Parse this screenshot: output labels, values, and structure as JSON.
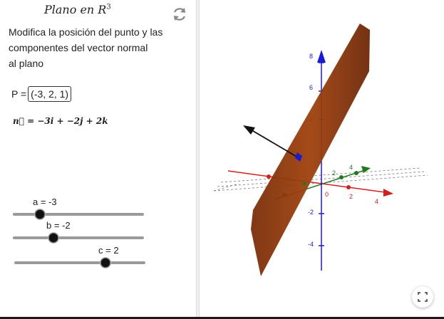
{
  "title": {
    "text": "Plano en R",
    "sup": "3"
  },
  "description": [
    "Modifica la posición del punto y las",
    "componentes del vector normal",
    "al plano"
  ],
  "point": {
    "label": "P =",
    "value": "(-3, 2, 1)"
  },
  "normal_vector": {
    "text": "n⃗ = −3i + −2j + 2k"
  },
  "sliders": [
    {
      "name": "a",
      "label": "a = -3",
      "value": -3
    },
    {
      "name": "b",
      "label": "b = -2",
      "value": -2
    },
    {
      "name": "c",
      "label": "c = 2",
      "value": 2
    }
  ],
  "view3d": {
    "z_ticks": [
      "8",
      "6",
      "4",
      "-2",
      "-4"
    ],
    "x_ticks": [
      "2",
      "4"
    ],
    "y_ticks": [
      "2",
      "4"
    ],
    "origin_label": "0",
    "colors": {
      "x_axis": "#d21f1f",
      "y_axis": "#1f7a1f",
      "z_axis": "#1a1ad6",
      "plane": "#a0410d",
      "vector": "#111111"
    }
  },
  "icons": {
    "reset": "reset-icon",
    "fullscreen": "fullscreen-icon"
  }
}
